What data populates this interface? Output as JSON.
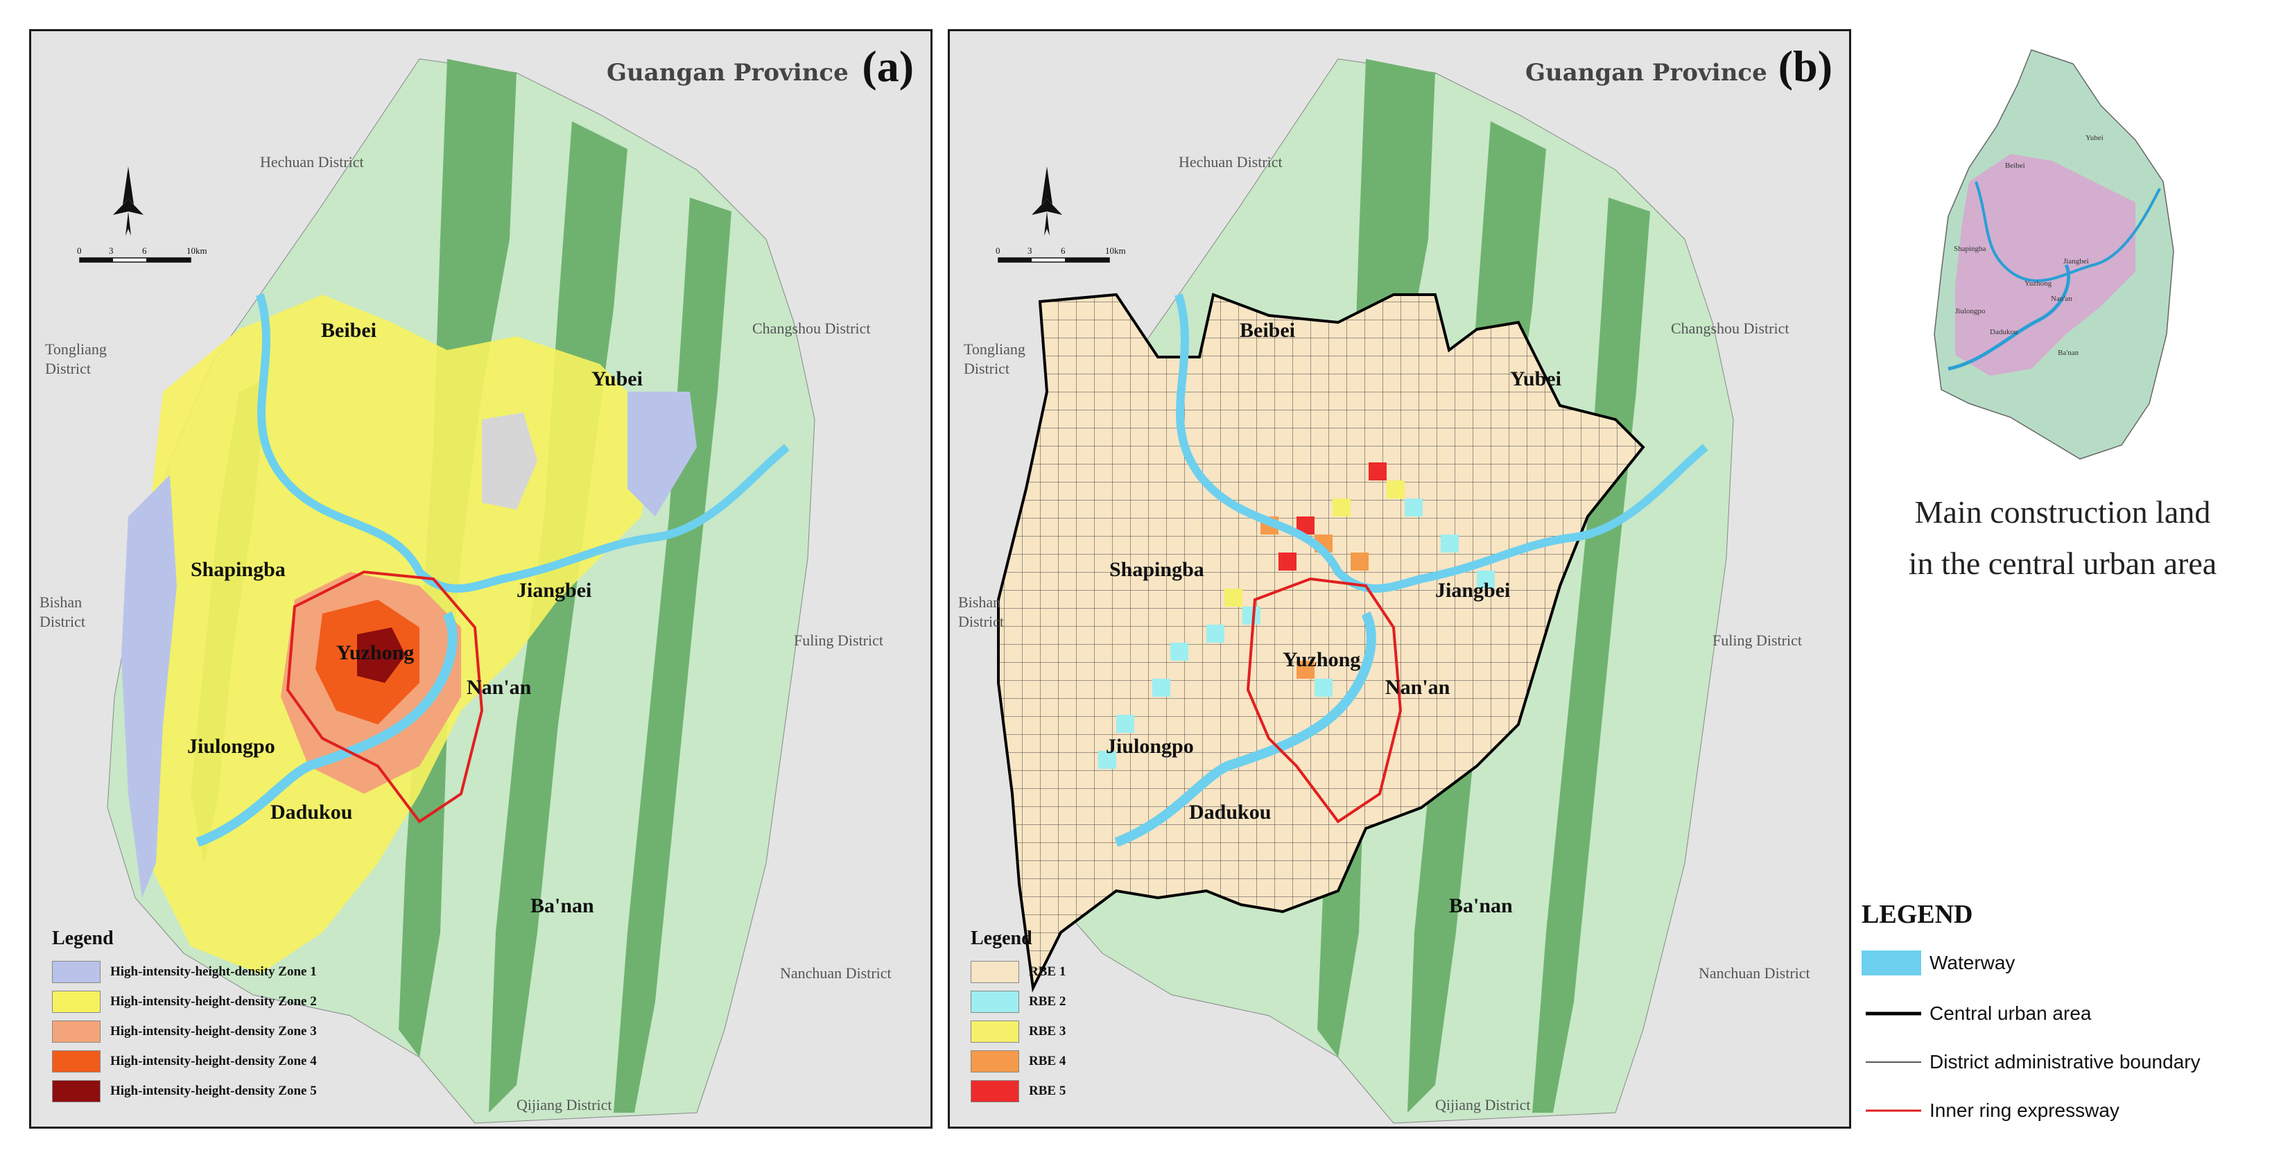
{
  "panel_a": {
    "letter": "(a)",
    "province": "Guangan Province",
    "neighbors": {
      "hechuan": "Hechuan District",
      "tongliang": "Tongliang\nDistrict",
      "changshou": "Changshou District",
      "bishan": "Bishan\nDistrict",
      "fuling": "Fuling District",
      "nanchuan": "Nanchuan District",
      "qijiang": "Qijiang District"
    },
    "districts": {
      "beibei": "Beibei",
      "yubei": "Yubei",
      "shapingba": "Shapingba",
      "jiangbei": "Jiangbei",
      "yuzhong": "Yuzhong",
      "nanan": "Nan'an",
      "jiulongpo": "Jiulongpo",
      "dadukou": "Dadukou",
      "banan": "Ba'nan"
    },
    "scale_labels": [
      "0",
      "3",
      "6",
      "10km"
    ],
    "legend": {
      "title": "Legend",
      "items": [
        {
          "label": "High-intensity-height-density Zone 1",
          "color": "#b9c3ea"
        },
        {
          "label": "High-intensity-height-density Zone 2",
          "color": "#f6f25e"
        },
        {
          "label": "High-intensity-height-density Zone 3",
          "color": "#f3a47a"
        },
        {
          "label": "High-intensity-height-density Zone 4",
          "color": "#f25c1a"
        },
        {
          "label": "High-intensity-height-density Zone 5",
          "color": "#8e0d0d"
        }
      ]
    }
  },
  "panel_b": {
    "letter": "(b)",
    "province": "Guangan Province",
    "neighbors": {
      "hechuan": "Hechuan District",
      "tongliang": "Tongliang\nDistrict",
      "changshou": "Changshou District",
      "bishan": "Bishan\nDistrict",
      "fuling": "Fuling District",
      "nanchuan": "Nanchuan District",
      "qijiang": "Qijiang District"
    },
    "districts": {
      "beibei": "Beibei",
      "yubei": "Yubei",
      "shapingba": "Shapingba",
      "jiangbei": "Jiangbei",
      "yuzhong": "Yuzhong",
      "nanan": "Nan'an",
      "jiulongpo": "Jiulongpo",
      "dadukou": "Dadukou",
      "banan": "Ba'nan"
    },
    "scale_labels": [
      "0",
      "3",
      "6",
      "10km"
    ],
    "legend": {
      "title": "Legend",
      "items": [
        {
          "label": "RBE 1",
          "color": "#f8e5c4"
        },
        {
          "label": "RBE 2",
          "color": "#9deef0"
        },
        {
          "label": "RBE 3",
          "color": "#f5f06a"
        },
        {
          "label": "RBE 4",
          "color": "#f59a4a"
        },
        {
          "label": "RBE 5",
          "color": "#ee2b2b"
        }
      ]
    }
  },
  "inset": {
    "caption_line1": "Main construction land",
    "caption_line2": "in the central urban area",
    "labels": {
      "beibei": "Beibei",
      "yubei": "Yubei",
      "shapingba": "Shapingba",
      "jiangbei": "Jiangbei",
      "yuzhong": "Yuzhong",
      "nanan": "Nan'an",
      "jiulongpo": "Jiulongpo",
      "dadukou": "Dadukou",
      "banan": "Ba'nan"
    }
  },
  "main_legend": {
    "title": "LEGEND",
    "items": [
      {
        "label": "Waterway",
        "kind": "fill",
        "color": "#6dd0ee"
      },
      {
        "label": "Central urban area",
        "kind": "line",
        "color": "#000000"
      },
      {
        "label": "District administrative boundary",
        "kind": "thin-line",
        "color": "#222222"
      },
      {
        "label": "Inner ring expressway",
        "kind": "line",
        "color": "#e02020"
      }
    ]
  },
  "colors": {
    "background": "#e4e4e4",
    "forest_dark": "#6fb26f",
    "forest_light": "#bfe3bf",
    "water": "#6dd0ee"
  }
}
